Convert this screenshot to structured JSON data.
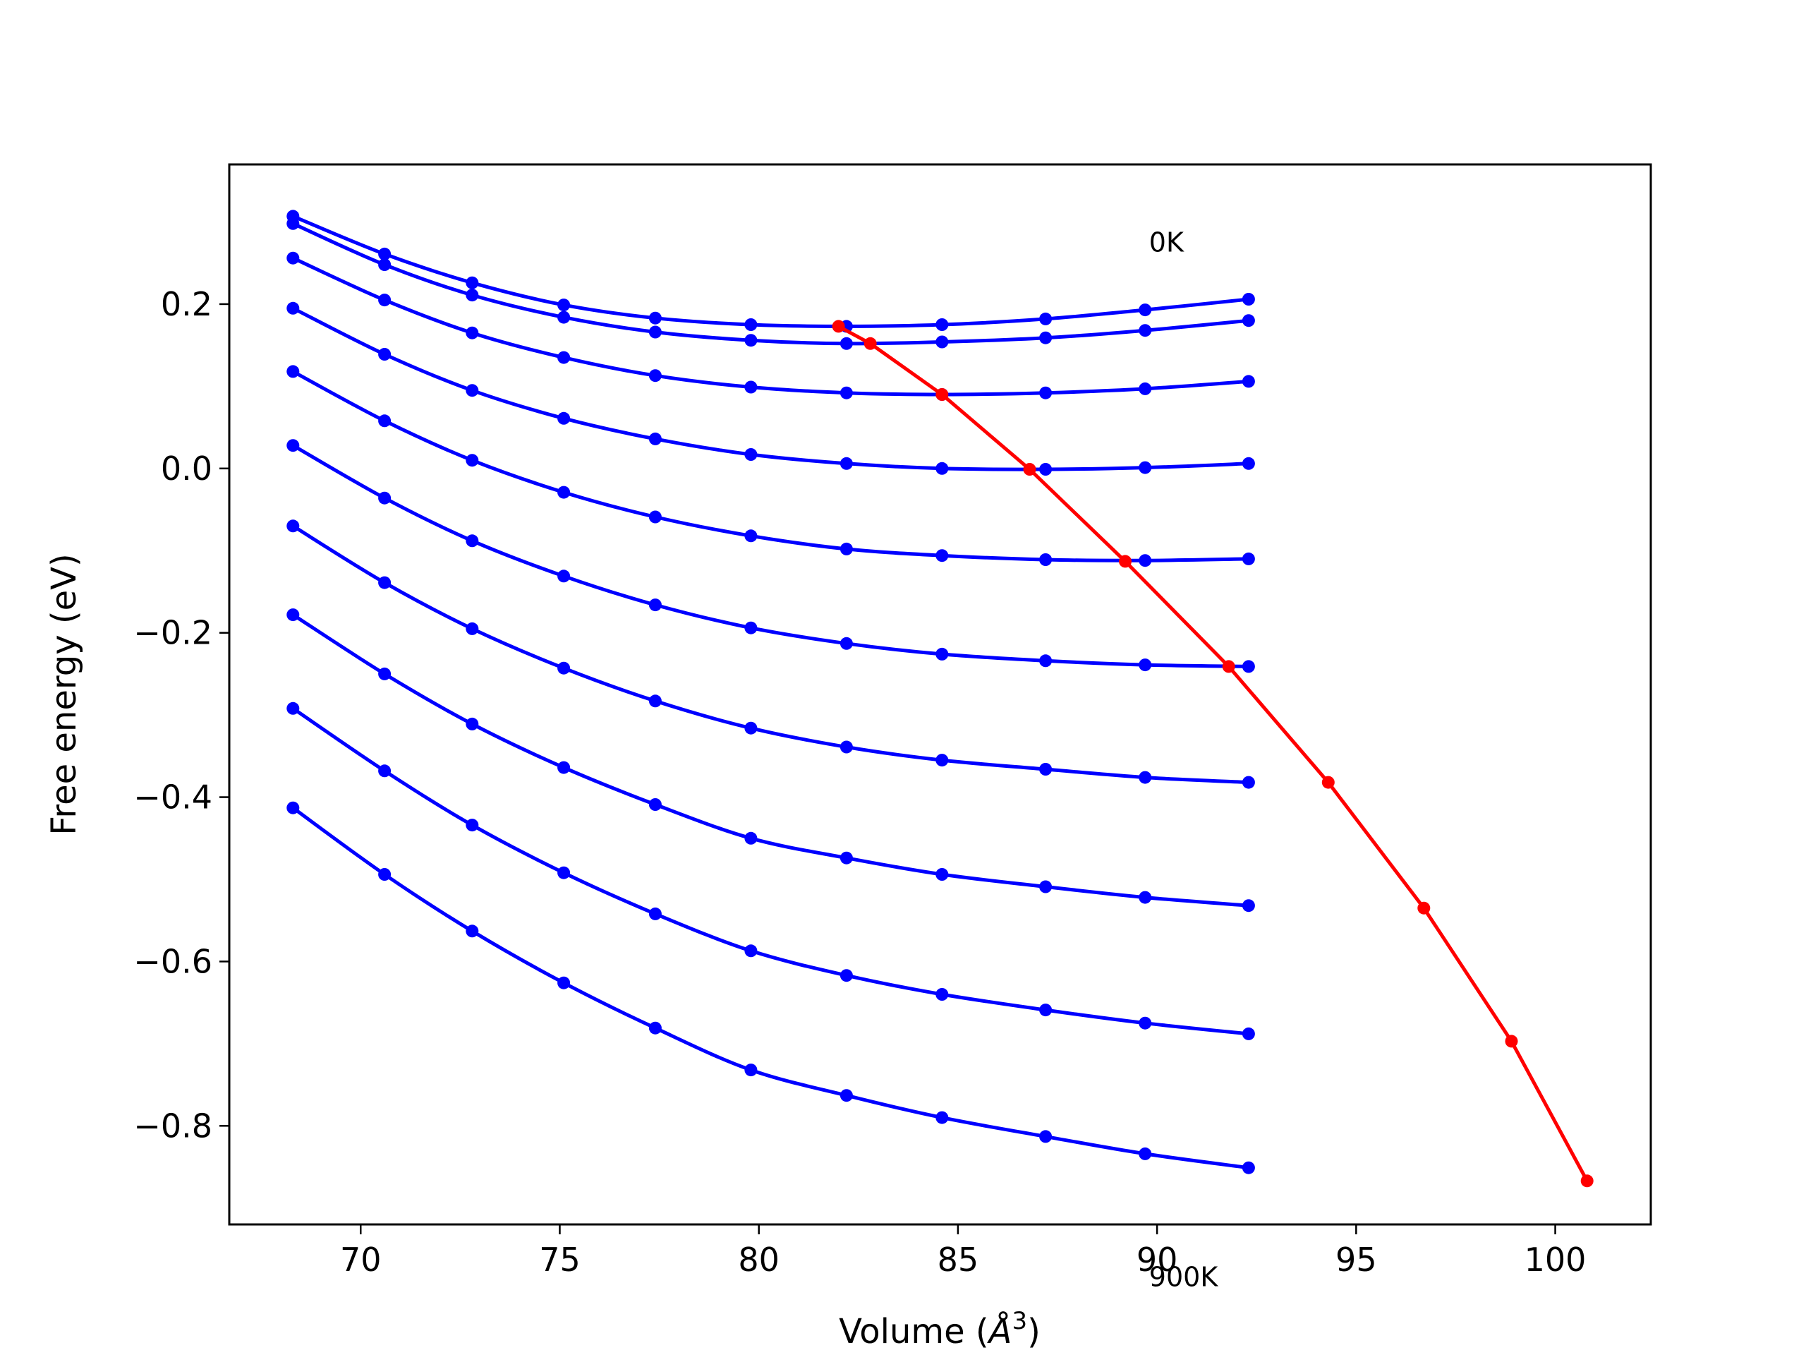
{
  "chart_data": {
    "type": "line",
    "title": "",
    "xlabel": "Volume (",
    "xlabel_unit": "Å",
    "xlabel_exp": "3",
    "xlabel_close": ")",
    "ylabel": "Free energy (eV)",
    "xlim": [
      66.7,
      102.4
    ],
    "ylim": [
      -0.92,
      0.37
    ],
    "xticks": [
      70,
      75,
      80,
      85,
      90,
      95,
      100
    ],
    "yticks": [
      -0.8,
      -0.6,
      -0.4,
      -0.2,
      0.0,
      0.2
    ],
    "xtick_labels": [
      "70",
      "75",
      "80",
      "85",
      "90",
      "95",
      "100"
    ],
    "ytick_labels": [
      "−0.8",
      "−0.6",
      "−0.4",
      "−0.2",
      "0.0",
      "0.2"
    ],
    "grid": false,
    "annotations": [
      {
        "text": "0K",
        "x": 89.8,
        "y": 0.264
      },
      {
        "text": "900K",
        "x": 89.8,
        "y": -0.995
      }
    ],
    "x": [
      68.3,
      70.6,
      72.8,
      75.1,
      77.4,
      79.8,
      82.2,
      84.6,
      87.2,
      89.7,
      92.3
    ],
    "series": [
      {
        "color": "#0000ff",
        "values": [
          0.307,
          0.261,
          0.226,
          0.199,
          0.183,
          0.175,
          0.173,
          0.175,
          0.182,
          0.193,
          0.206
        ]
      },
      {
        "color": "#0000ff",
        "values": [
          0.298,
          0.248,
          0.211,
          0.184,
          0.166,
          0.156,
          0.152,
          0.154,
          0.159,
          0.168,
          0.18
        ]
      },
      {
        "color": "#0000ff",
        "values": [
          0.256,
          0.205,
          0.165,
          0.135,
          0.113,
          0.099,
          0.092,
          0.09,
          0.092,
          0.097,
          0.106
        ]
      },
      {
        "color": "#0000ff",
        "values": [
          0.195,
          0.139,
          0.095,
          0.061,
          0.036,
          0.017,
          0.006,
          0.0,
          -0.001,
          0.001,
          0.006
        ]
      },
      {
        "color": "#0000ff",
        "values": [
          0.118,
          0.058,
          0.01,
          -0.029,
          -0.059,
          -0.082,
          -0.098,
          -0.106,
          -0.111,
          -0.112,
          -0.11
        ]
      },
      {
        "color": "#0000ff",
        "values": [
          0.028,
          -0.036,
          -0.088,
          -0.131,
          -0.166,
          -0.194,
          -0.213,
          -0.226,
          -0.234,
          -0.239,
          -0.241
        ]
      },
      {
        "color": "#0000ff",
        "values": [
          -0.07,
          -0.139,
          -0.195,
          -0.243,
          -0.283,
          -0.316,
          -0.339,
          -0.355,
          -0.366,
          -0.376,
          -0.382
        ]
      },
      {
        "color": "#0000ff",
        "values": [
          -0.178,
          -0.25,
          -0.311,
          -0.364,
          -0.409,
          -0.45,
          -0.474,
          -0.494,
          -0.509,
          -0.522,
          -0.532
        ]
      },
      {
        "color": "#0000ff",
        "values": [
          -0.292,
          -0.368,
          -0.434,
          -0.492,
          -0.542,
          -0.587,
          -0.617,
          -0.64,
          -0.659,
          -0.675,
          -0.688
        ]
      },
      {
        "color": "#0000ff",
        "values": [
          -0.413,
          -0.494,
          -0.563,
          -0.626,
          -0.681,
          -0.732,
          -0.763,
          -0.79,
          -0.813,
          -0.834,
          -0.851
        ]
      }
    ],
    "minima_line": {
      "color": "#ff0000",
      "x": [
        82.0,
        82.8,
        84.6,
        86.8,
        89.2,
        91.8,
        94.3,
        96.7,
        98.9,
        100.8
      ],
      "y": [
        0.173,
        0.152,
        0.09,
        -0.001,
        -0.113,
        -0.241,
        -0.382,
        -0.535,
        -0.697,
        -0.867
      ]
    }
  }
}
